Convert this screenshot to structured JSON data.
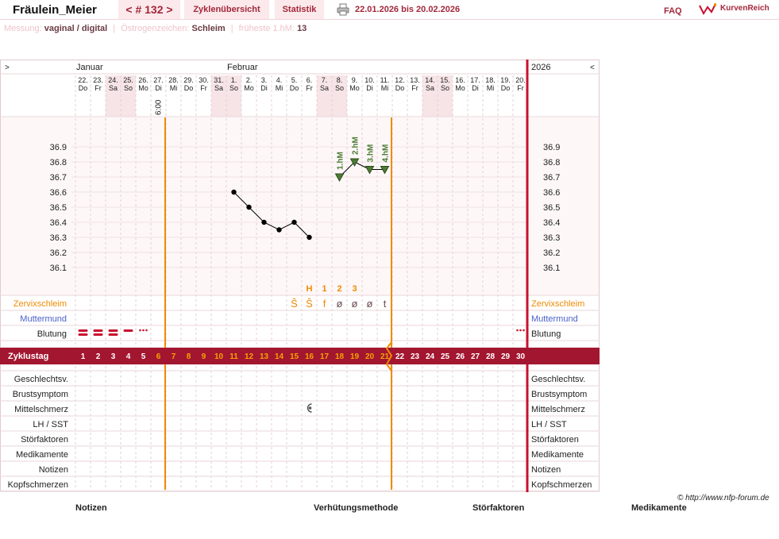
{
  "header": {
    "username": "Fräulein_Meier",
    "cycle_nav": "< # 132 >",
    "tab_overview": "Zyklenübersicht",
    "tab_stats": "Statistik",
    "date_range": "22.01.2026 bis 20.02.2026",
    "faq": "FAQ",
    "brand": "KurvenReich"
  },
  "subheader": {
    "measure_label": "Messung:",
    "measure_value": "vaginal / digital",
    "estrogen_label": "Östrogenzeichen:",
    "estrogen_value": "Schleim",
    "earliest_label": "früheste 1.hM:",
    "earliest_value": "13"
  },
  "chart_data": {
    "type": "line",
    "month_labels": [
      "Januar",
      "Februar"
    ],
    "year": "2026",
    "nav_left": ">",
    "nav_right": "<",
    "dates": [
      "22.",
      "23.",
      "24.",
      "25.",
      "26.",
      "27.",
      "28.",
      "29.",
      "30.",
      "31.",
      "1.",
      "2.",
      "3.",
      "4.",
      "5.",
      "6.",
      "7.",
      "8.",
      "9.",
      "10.",
      "11.",
      "12.",
      "13.",
      "14.",
      "15.",
      "16.",
      "17.",
      "18.",
      "19.",
      "20."
    ],
    "weekdays": [
      "Do",
      "Fr",
      "Sa",
      "So",
      "Mo",
      "Di",
      "Mi",
      "Do",
      "Fr",
      "Sa",
      "So",
      "Mo",
      "Di",
      "Mi",
      "Do",
      "Fr",
      "Sa",
      "So",
      "Mo",
      "Di",
      "Mi",
      "Do",
      "Fr",
      "Sa",
      "So",
      "Mo",
      "Di",
      "Mi",
      "Do",
      "Fr"
    ],
    "cycle_days": [
      "1",
      "2",
      "3",
      "4",
      "5",
      "6",
      "7",
      "8",
      "9",
      "10",
      "11",
      "12",
      "13",
      "14",
      "15",
      "16",
      "17",
      "18",
      "19",
      "20",
      "21",
      "22",
      "23",
      "24",
      "25",
      "26",
      "27",
      "28",
      "29",
      "30"
    ],
    "time_label": "6:00",
    "time_label_day": 6,
    "y_ticks": [
      "36.9",
      "36.8",
      "36.7",
      "36.6",
      "36.5",
      "36.4",
      "36.3",
      "36.2",
      "36.1"
    ],
    "ylim": [
      36.1,
      36.9
    ],
    "temperature_series": [
      {
        "day": 11,
        "temp": 36.6
      },
      {
        "day": 12,
        "temp": 36.5
      },
      {
        "day": 13,
        "temp": 36.4
      },
      {
        "day": 14,
        "temp": 36.35
      },
      {
        "day": 15,
        "temp": 36.4
      },
      {
        "day": 16,
        "temp": 36.3
      }
    ],
    "high_series": [
      {
        "day": 18,
        "temp": 36.7,
        "label": "1.hM"
      },
      {
        "day": 19,
        "temp": 36.8,
        "label": "2.hM"
      },
      {
        "day": 20,
        "temp": 36.75,
        "label": "3.hM"
      },
      {
        "day": 21,
        "temp": 36.75,
        "label": "4.hM"
      }
    ],
    "peak_markers": [
      {
        "day": 16,
        "text": "H"
      },
      {
        "day": 17,
        "text": "1"
      },
      {
        "day": 18,
        "text": "2"
      },
      {
        "day": 19,
        "text": "3"
      }
    ],
    "mucus_symbols": [
      {
        "day": 15,
        "text": "Ŝ"
      },
      {
        "day": 16,
        "text": "Ŝ"
      },
      {
        "day": 17,
        "text": "f"
      },
      {
        "day": 18,
        "text": "ø"
      },
      {
        "day": 19,
        "text": "ø"
      },
      {
        "day": 20,
        "text": "ø"
      },
      {
        "day": 21,
        "text": "t"
      }
    ],
    "bleeding": [
      {
        "day": 1,
        "level": "heavy"
      },
      {
        "day": 2,
        "level": "heavy"
      },
      {
        "day": 3,
        "level": "heavy"
      },
      {
        "day": 4,
        "level": "medium"
      },
      {
        "day": 5,
        "level": "spotting"
      },
      {
        "day": 30,
        "level": "spotting"
      }
    ],
    "mittelschmerz_day": 16,
    "weekend_days": [
      3,
      4,
      10,
      11,
      17,
      18,
      24,
      25
    ],
    "orange_lines_days": [
      6,
      21
    ],
    "row_labels": {
      "zervixschleim": "Zervixschleim",
      "muttermund": "Muttermund",
      "blutung": "Blutung",
      "zyklustag": "Zyklustag",
      "bottom": [
        "Geschlechtsv.",
        "Brustsymptom",
        "Mittelschmerz",
        "LH / SST",
        "Störfaktoren",
        "Medikamente",
        "Notizen",
        "Kopfschmerzen"
      ]
    },
    "colors": {
      "temp_line": "#000000",
      "high_marker": "#4c7b34",
      "orange": "#f08a00",
      "red": "#c8102e",
      "zyklustag_bar": "#a31630",
      "weekend_bg": "#f6e4e7",
      "muttermund": "#4a5fc9"
    }
  },
  "footer": {
    "copyright": "© http://www.nfp-forum.de",
    "col1": "Notizen",
    "col2": "Verhütungsmethode",
    "col3": "Störfaktoren",
    "col4": "Medikamente"
  }
}
